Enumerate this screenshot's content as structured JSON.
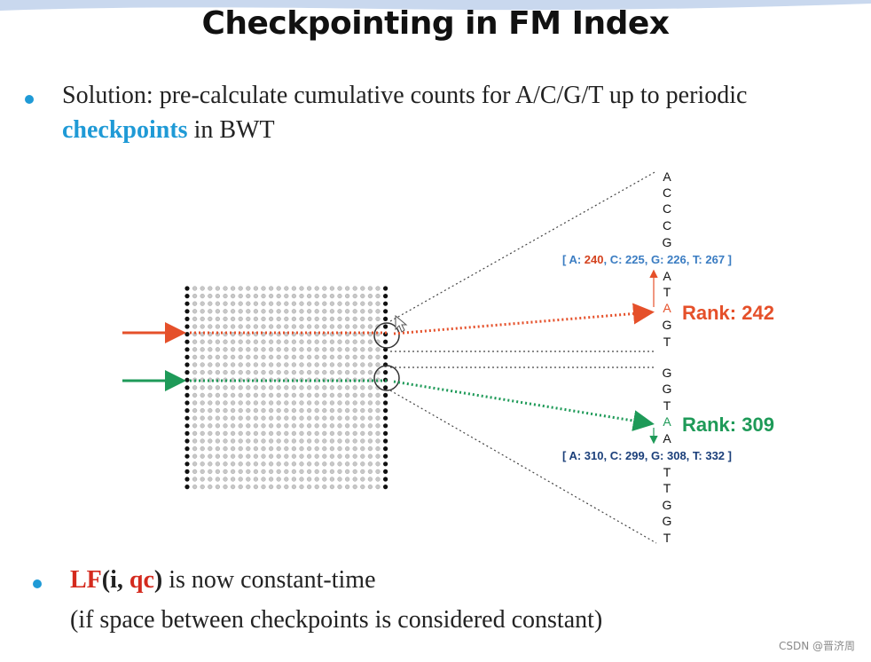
{
  "title": "Checkpointing in FM Index",
  "bullet1": {
    "line1": "Solution: pre-calculate cumulative counts for A/C/G/T up to periodic",
    "line2_highlight": "checkpoints",
    "line2_rest": " in BWT"
  },
  "diagram": {
    "column_top": [
      "A",
      "C",
      "C",
      "C",
      "G"
    ],
    "checkpoint_top": {
      "open": "[ A: ",
      "a": "240",
      "c_label": ", C: 225, G: 226, T: 267 ]"
    },
    "column_mid": [
      "A",
      "T",
      "A",
      "G",
      "T"
    ],
    "column_lower": [
      "G",
      "G",
      "T",
      "A",
      "A"
    ],
    "checkpoint_bottom": "[ A: 310, C: 299, G: 308, T: 332 ]",
    "column_bottom": [
      "T",
      "T",
      "G",
      "G",
      "T"
    ],
    "rank_red": "Rank: 242",
    "rank_green": "Rank: 309",
    "colors": {
      "red": "#e5502a",
      "green": "#1e9a58",
      "blue": "#3a7cc2"
    }
  },
  "bullet2": {
    "lf": "LF",
    "paren_open": "(",
    "i": "i",
    "comma": ", ",
    "qc": "qc",
    "paren_close": ")",
    "rest": " is now constant-time",
    "line2": "(if space between checkpoints is considered constant)"
  },
  "watermark": "CSDN @晋济周"
}
